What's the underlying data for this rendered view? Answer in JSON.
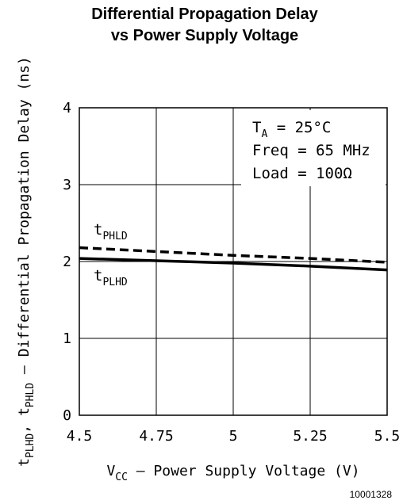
{
  "chart_data": {
    "type": "line",
    "title": [
      "Differential Propagation Delay",
      "vs Power Supply Voltage"
    ],
    "x": [
      4.5,
      4.75,
      5,
      5.25,
      5.5
    ],
    "xticks": [
      "4.5",
      "4.75",
      "5",
      "5.25",
      "5.5"
    ],
    "yticks": [
      "0",
      "1",
      "2",
      "3",
      "4"
    ],
    "xlim": [
      4.5,
      5.5
    ],
    "ylim": [
      0,
      4
    ],
    "grid": true,
    "xlabel": {
      "main": "V",
      "sub": "CC",
      "rest": " – Power Supply Voltage (V)"
    },
    "ylabel": {
      "p1": "t",
      "s1": "PLHD",
      "p2": ", t",
      "s2": "PHLD",
      "rest": " – Differential Propagation Delay (ns)"
    },
    "series": [
      {
        "name": "tPHLD",
        "label_main": "t",
        "label_sub": "PHLD",
        "style": "dashed",
        "values": [
          2.18,
          2.13,
          2.08,
          2.04,
          1.99
        ]
      },
      {
        "name": "tPLHD",
        "label_main": "t",
        "label_sub": "PLHD",
        "style": "solid",
        "values": [
          2.04,
          2.01,
          1.98,
          1.94,
          1.89
        ]
      }
    ],
    "annotations": [
      {
        "main": "T",
        "sub": "A",
        "rest": " = 25°C"
      },
      {
        "main": "Freq = 65 MHz"
      },
      {
        "main": "Load = 100Ω"
      }
    ],
    "figure_id": "10001328"
  }
}
